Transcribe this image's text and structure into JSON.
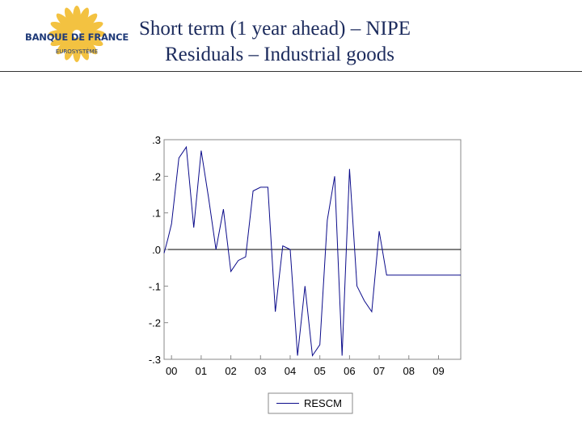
{
  "header": {
    "logo_name": "BANQUE DE FRANCE",
    "logo_sub": "EUROSYSTÈME",
    "title_line1": "Short term (1 year ahead) – NIPE",
    "title_line2": "Residuals – Industrial goods"
  },
  "colors": {
    "series": "#0b0b8a",
    "title": "#1b2a5c",
    "logo": "#f2b820"
  },
  "chart_data": {
    "type": "line",
    "title": "",
    "xlabel": "",
    "ylabel": "",
    "xlim": [
      2000.0,
      2010.0
    ],
    "ylim": [
      -0.3,
      0.3
    ],
    "x_ticks": [
      2000.25,
      2001.25,
      2002.25,
      2003.25,
      2004.25,
      2005.25,
      2006.25,
      2007.25,
      2008.25,
      2009.25
    ],
    "x_tick_labels": [
      "00",
      "01",
      "02",
      "03",
      "04",
      "05",
      "06",
      "07",
      "08",
      "09"
    ],
    "y_ticks": [
      0.3,
      0.2,
      0.1,
      0.0,
      -0.1,
      -0.2,
      -0.3
    ],
    "y_tick_labels": [
      ".3",
      ".2",
      ".1",
      ".0",
      "-.1",
      "-.2",
      "-.3"
    ],
    "zero_line": true,
    "legend": "bottom-center",
    "series": [
      {
        "name": "RESCM",
        "x": [
          2000.0,
          2000.13,
          2000.25,
          2000.5,
          2000.75,
          2001.0,
          2001.25,
          2001.5,
          2001.75,
          2002.0,
          2002.25,
          2002.5,
          2002.75,
          2003.0,
          2003.25,
          2003.5,
          2003.75,
          2004.0,
          2004.25,
          2004.5,
          2004.75,
          2005.0,
          2005.25,
          2005.5,
          2005.75,
          2006.0,
          2006.25,
          2006.5,
          2006.75,
          2007.0,
          2007.25,
          2007.5,
          2007.75,
          2008.0,
          2008.25,
          2008.5,
          2008.75,
          2009.0,
          2009.25,
          2009.5,
          2009.75,
          2010.0
        ],
        "values": [
          -0.01,
          0.03,
          0.07,
          0.25,
          0.28,
          0.06,
          0.27,
          0.14,
          0.0,
          0.11,
          -0.06,
          -0.03,
          -0.02,
          0.16,
          0.17,
          0.17,
          -0.17,
          0.01,
          0.0,
          -0.29,
          -0.1,
          -0.29,
          -0.26,
          0.08,
          0.2,
          -0.29,
          0.22,
          -0.1,
          -0.14,
          -0.17,
          0.05,
          -0.07,
          -0.07,
          -0.07,
          -0.07,
          -0.07,
          -0.07,
          -0.07,
          -0.07,
          -0.07,
          -0.07,
          -0.07
        ]
      }
    ]
  }
}
